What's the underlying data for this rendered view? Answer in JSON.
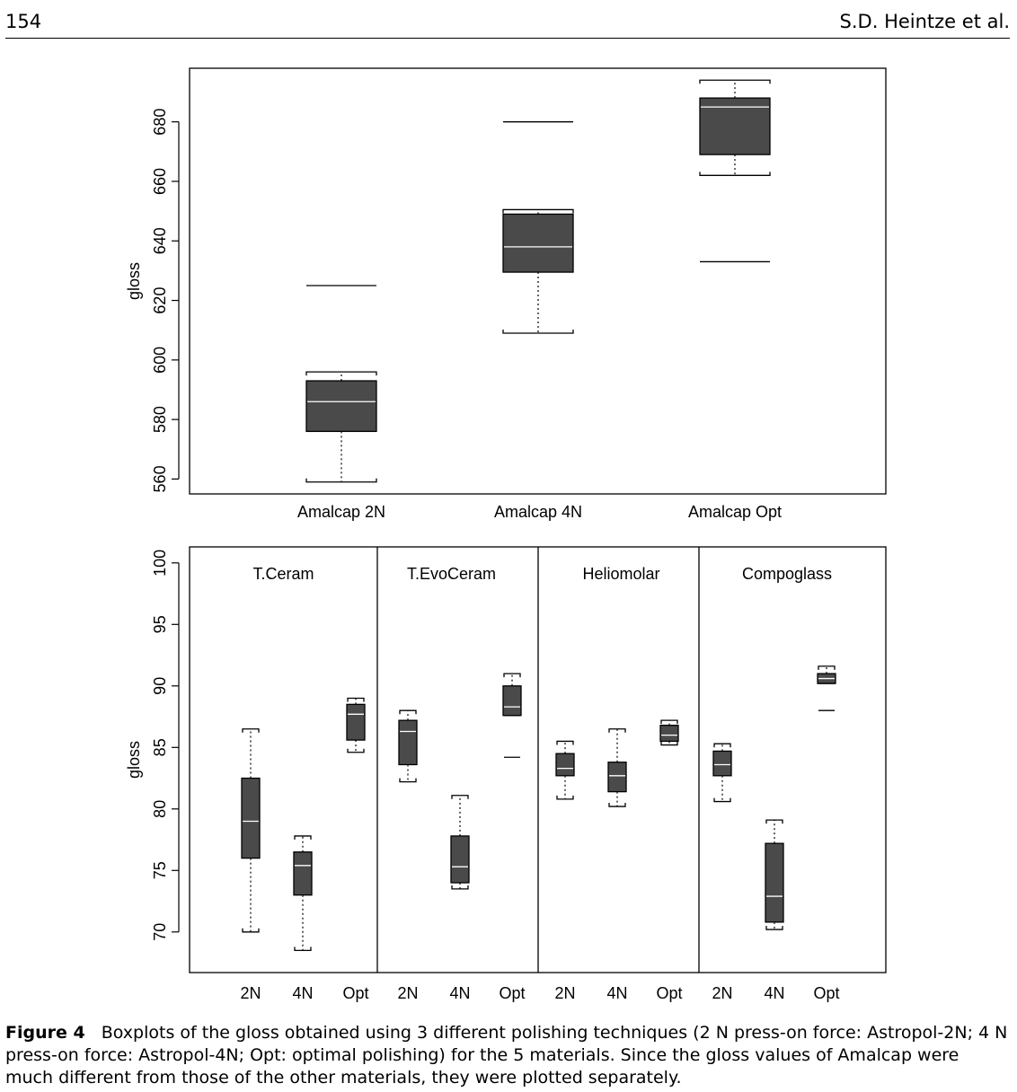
{
  "header": {
    "page_number": "154",
    "authors": "S.D. Heintze et al."
  },
  "caption": {
    "label": "Figure 4",
    "text": "Boxplots of the gloss obtained using 3 different polishing techniques (2 N press-on force: Astropol-2N; 4 N press-on force: Astropol-4N; Opt: optimal polishing) for the 5 materials. Since the gloss values of Amalcap were much different from those of the other materials, they were plotted separately."
  },
  "chart_data": [
    {
      "type": "boxplot",
      "ylabel": "gloss",
      "xlabel": "",
      "ylim": [
        555,
        698
      ],
      "yticks": [
        560,
        580,
        600,
        620,
        640,
        660,
        680
      ],
      "grid": false,
      "boxes": [
        {
          "category": "Amalcap 2N",
          "whisker_low": 559,
          "q1": 576,
          "median": 586,
          "q3": 593,
          "whisker_high": 596,
          "outliers": [
            625
          ]
        },
        {
          "category": "Amalcap 4N",
          "whisker_low": 609,
          "q1": 629.5,
          "median": 638,
          "q3": 649,
          "whisker_high": 650.5,
          "outliers": [
            680
          ]
        },
        {
          "category": "Amalcap Opt",
          "whisker_low": 662,
          "q1": 669,
          "median": 685,
          "q3": 688,
          "whisker_high": 694,
          "outliers": [
            633
          ]
        }
      ]
    },
    {
      "type": "boxplot",
      "ylabel": "gloss",
      "xlabel": "",
      "ylim": [
        66.7,
        101.3
      ],
      "yticks": [
        70,
        75,
        80,
        85,
        90,
        95,
        100
      ],
      "grid": false,
      "panels": [
        {
          "title": "T.Ceram",
          "boxes": [
            {
              "category": "2N",
              "whisker_low": 70,
              "q1": 76,
              "median": 79,
              "q3": 82.5,
              "whisker_high": 86.5,
              "outliers": []
            },
            {
              "category": "4N",
              "whisker_low": 68.5,
              "q1": 73,
              "median": 75.4,
              "q3": 76.5,
              "whisker_high": 77.8,
              "outliers": []
            },
            {
              "category": "Opt",
              "whisker_low": 84.6,
              "q1": 85.6,
              "median": 87.7,
              "q3": 88.5,
              "whisker_high": 89,
              "outliers": []
            }
          ]
        },
        {
          "title": "T.EvoCeram",
          "boxes": [
            {
              "category": "2N",
              "whisker_low": 82.2,
              "q1": 83.6,
              "median": 86.3,
              "q3": 87.2,
              "whisker_high": 88,
              "outliers": []
            },
            {
              "category": "4N",
              "whisker_low": 73.5,
              "q1": 74,
              "median": 75.3,
              "q3": 77.8,
              "whisker_high": 81.1,
              "outliers": []
            },
            {
              "category": "Opt",
              "whisker_low": 87.6,
              "q1": 87.6,
              "median": 88.3,
              "q3": 90,
              "whisker_high": 91,
              "outliers": [
                84.2
              ]
            }
          ]
        },
        {
          "title": "Heliomolar",
          "boxes": [
            {
              "category": "2N",
              "whisker_low": 80.8,
              "q1": 82.7,
              "median": 83.3,
              "q3": 84.5,
              "whisker_high": 85.5,
              "outliers": []
            },
            {
              "category": "4N",
              "whisker_low": 80.2,
              "q1": 81.4,
              "median": 82.7,
              "q3": 83.8,
              "whisker_high": 86.5,
              "outliers": []
            },
            {
              "category": "Opt",
              "whisker_low": 85.2,
              "q1": 85.5,
              "median": 86,
              "q3": 86.8,
              "whisker_high": 87.2,
              "outliers": []
            }
          ]
        },
        {
          "title": "Compoglass",
          "boxes": [
            {
              "category": "2N",
              "whisker_low": 80.6,
              "q1": 82.7,
              "median": 83.6,
              "q3": 84.7,
              "whisker_high": 85.3,
              "outliers": []
            },
            {
              "category": "4N",
              "whisker_low": 70.2,
              "q1": 70.8,
              "median": 72.9,
              "q3": 77.2,
              "whisker_high": 79.1,
              "outliers": []
            },
            {
              "category": "Opt",
              "whisker_low": 90.2,
              "q1": 90.2,
              "median": 90.6,
              "q3": 91,
              "whisker_high": 91.6,
              "outliers": [
                88
              ]
            }
          ]
        }
      ]
    }
  ],
  "colors": {
    "box_fill": "#4a4a4a",
    "median_line": "#ffffff",
    "axis": "#000000"
  }
}
